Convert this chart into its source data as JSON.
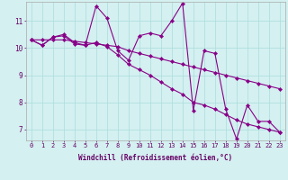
{
  "xlabel": "Windchill (Refroidissement éolien,°C)",
  "background_color": "#d4f0f0",
  "line_color": "#880088",
  "grid_color": "#aadddd",
  "xlim": [
    -0.5,
    23.5
  ],
  "ylim": [
    6.6,
    11.7
  ],
  "xticks": [
    0,
    1,
    2,
    3,
    4,
    5,
    6,
    7,
    8,
    9,
    10,
    11,
    12,
    13,
    14,
    15,
    16,
    17,
    18,
    19,
    20,
    21,
    22,
    23
  ],
  "yticks": [
    7,
    8,
    9,
    10,
    11
  ],
  "line1": [
    10.3,
    10.1,
    10.4,
    10.5,
    10.2,
    10.1,
    11.55,
    11.1,
    9.9,
    9.55,
    10.45,
    10.55,
    10.45,
    11.0,
    11.65,
    7.7,
    9.9,
    9.8,
    7.75,
    6.65,
    7.9,
    7.3,
    7.3,
    6.9
  ],
  "line2": [
    10.3,
    10.1,
    10.4,
    10.45,
    10.15,
    10.1,
    10.2,
    10.05,
    9.75,
    9.4,
    9.2,
    9.0,
    8.75,
    8.5,
    8.3,
    8.0,
    7.9,
    7.75,
    7.55,
    7.35,
    7.2,
    7.1,
    7.0,
    6.9
  ],
  "line3": [
    10.3,
    10.3,
    10.3,
    10.3,
    10.25,
    10.2,
    10.15,
    10.1,
    10.05,
    9.9,
    9.8,
    9.7,
    9.6,
    9.5,
    9.4,
    9.3,
    9.2,
    9.1,
    9.0,
    8.9,
    8.8,
    8.7,
    8.6,
    8.5
  ],
  "tick_fontsize": 5.0,
  "xlabel_fontsize": 5.5
}
